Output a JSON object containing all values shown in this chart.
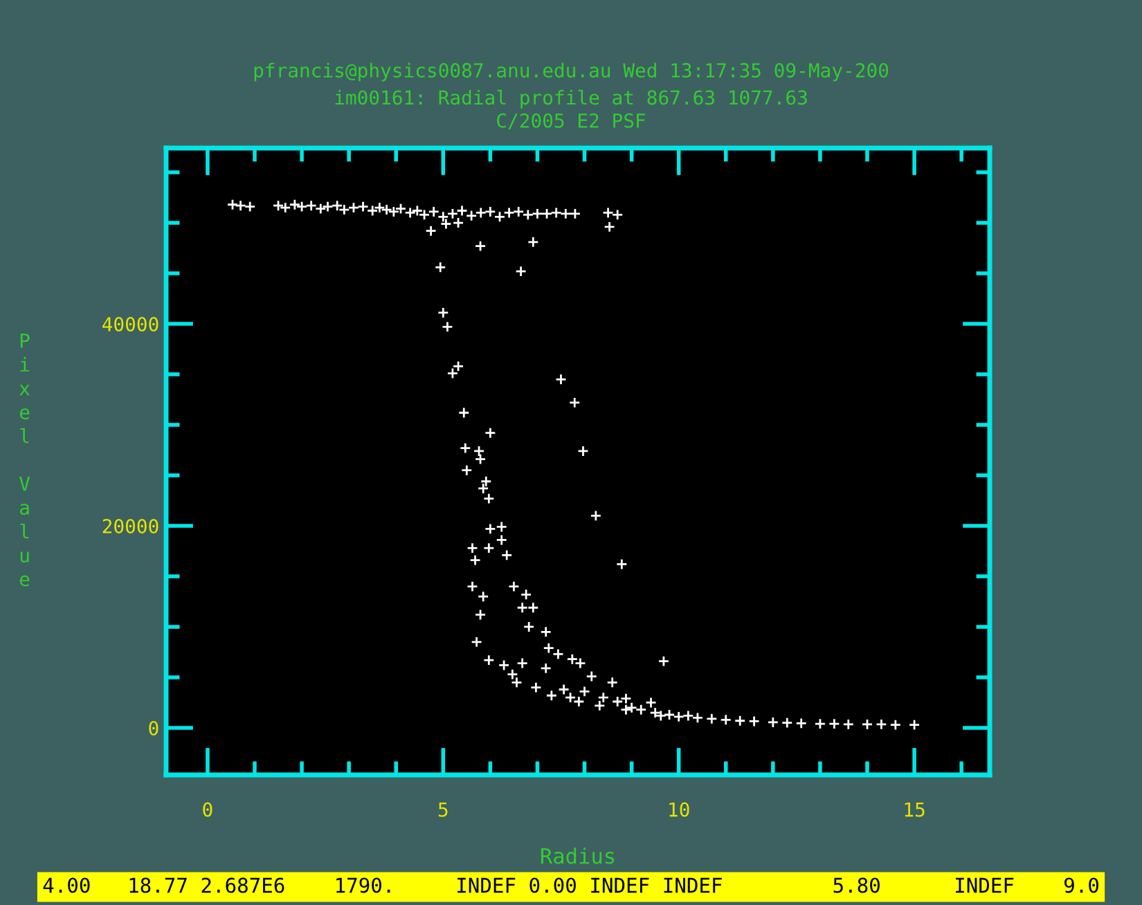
{
  "chart_data": {
    "type": "scatter",
    "title": "pfrancis@physics0087.anu.edu.au Wed 13:17:35 09-May-200",
    "subtitle": "im00161: Radial profile at 867.63 1077.63\nC/2005 E2 PSF",
    "xlabel": "Radius",
    "ylabel": "Pixel Value",
    "annotations": [
      "4.00   18.77 2.687E6    1790.     INDEF 0.00 INDEF INDEF         5.80      INDEF    9.0"
    ],
    "marker": "cross",
    "grid": false,
    "legend": false,
    "xlim": [
      -0.88,
      16.6
    ],
    "ylim": [
      -4660,
      57400
    ],
    "xticks": [
      0,
      5,
      10,
      15
    ],
    "yticks": [
      0,
      20000,
      40000
    ],
    "series": [
      {
        "color": "#ffffff",
        "x": [
          0.53,
          0.7,
          0.9,
          1.5,
          1.65,
          1.85,
          2.0,
          2.2,
          2.4,
          2.55,
          2.75,
          2.9,
          3.1,
          3.3,
          3.5,
          3.65,
          3.8,
          3.95,
          4.1,
          4.3,
          4.45,
          4.6,
          4.8,
          5.0,
          5.2,
          5.4,
          5.6,
          5.8,
          6.0,
          6.2,
          6.4,
          6.6,
          6.8,
          7.0,
          7.2,
          7.4,
          7.6,
          7.8,
          8.5,
          8.7,
          4.74,
          5.06,
          5.32,
          5.79,
          6.91,
          4.94,
          6.65,
          8.53,
          5.0,
          5.09,
          5.32,
          5.2,
          7.5,
          7.79,
          5.44,
          6.0,
          5.47,
          5.76,
          5.79,
          7.97,
          5.5,
          5.91,
          5.85,
          5.97,
          8.24,
          8.79,
          6.0,
          6.24,
          6.24,
          5.62,
          5.97,
          6.35,
          5.68,
          5.62,
          6.5,
          5.85,
          6.76,
          6.68,
          6.91,
          5.79,
          6.82,
          7.18,
          5.71,
          7.24,
          7.44,
          7.74,
          9.68,
          5.97,
          6.29,
          6.68,
          7.91,
          6.47,
          7.18,
          6.56,
          6.97,
          7.56,
          8.15,
          8.59,
          7.88,
          8.32,
          8.88,
          8.88,
          9.41,
          9.62,
          10.2,
          7.3,
          7.7,
          8.0,
          8.4,
          8.7,
          9.0,
          9.2,
          9.5,
          9.8,
          10.0,
          10.4,
          10.7,
          11.0,
          11.3,
          11.6,
          12.0,
          12.3,
          12.6,
          13.0,
          13.3,
          13.6,
          14.0,
          14.3,
          14.6,
          15.0
        ],
        "values": [
          51800,
          51700,
          51600,
          51700,
          51500,
          51800,
          51600,
          51700,
          51400,
          51600,
          51700,
          51300,
          51500,
          51600,
          51200,
          51500,
          51300,
          51100,
          51400,
          51000,
          51200,
          50800,
          51100,
          50600,
          50900,
          51200,
          50700,
          51000,
          51100,
          50600,
          51000,
          51100,
          50800,
          50900,
          50900,
          51000,
          50900,
          50900,
          51000,
          50800,
          49200,
          49900,
          50000,
          47700,
          48100,
          45600,
          45200,
          49600,
          41100,
          39700,
          35800,
          35100,
          34500,
          32200,
          31200,
          29200,
          27700,
          27400,
          26600,
          27400,
          25500,
          24400,
          23700,
          22700,
          21000,
          16200,
          19700,
          19900,
          18600,
          17800,
          17800,
          17100,
          16600,
          14000,
          14000,
          13000,
          13200,
          11900,
          11900,
          11200,
          10000,
          9500,
          8500,
          7900,
          7300,
          6800,
          6600,
          6700,
          6200,
          6400,
          6400,
          5300,
          5900,
          4500,
          4000,
          3800,
          5100,
          4500,
          2600,
          2200,
          2900,
          1800,
          2500,
          1200,
          1200,
          3200,
          3000,
          3600,
          3000,
          2600,
          2000,
          1800,
          1500,
          1300,
          1100,
          1000,
          900,
          800,
          700,
          650,
          550,
          500,
          450,
          400,
          400,
          350,
          350,
          350,
          300,
          300
        ]
      }
    ]
  }
}
